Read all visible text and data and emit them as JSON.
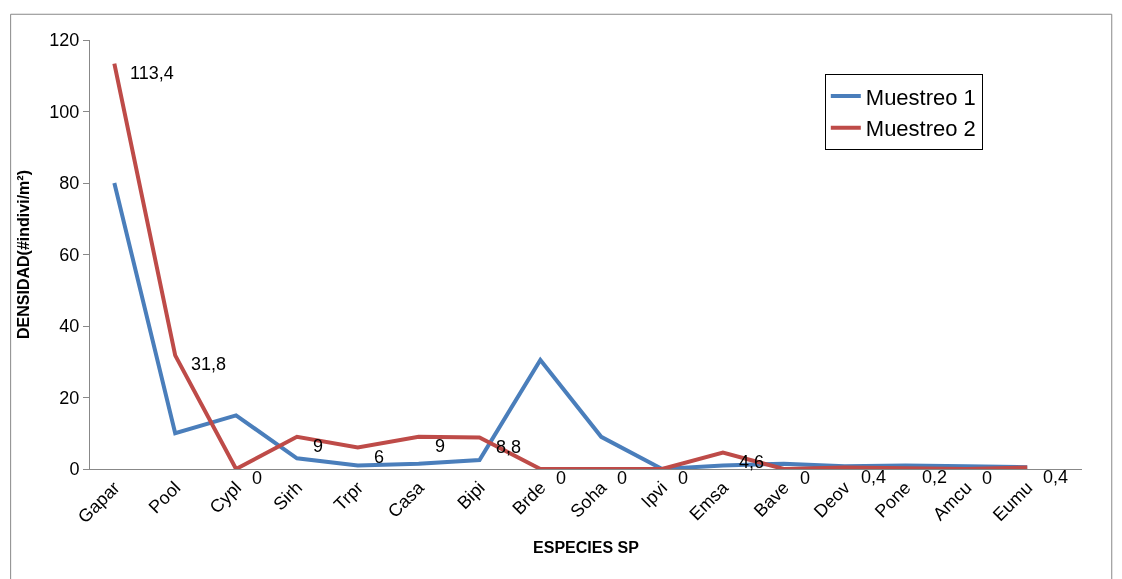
{
  "chart_data": {
    "type": "line",
    "xlabel": "ESPECIES SP",
    "ylabel": "DENSIDAD(#indivi/m²)",
    "categories": [
      "Gapar",
      "Pool",
      "Cypl",
      "Sirh",
      "Trpr",
      "Casa",
      "Bipi",
      "Brde",
      "Soha",
      "Ipvi",
      "Emsa",
      "Bave",
      "Deov",
      "Pone",
      "Amcu",
      "Eumu"
    ],
    "ylim": [
      0,
      120
    ],
    "yticks": [
      0,
      20,
      40,
      60,
      80,
      100,
      120
    ],
    "legend": "top right",
    "marker": "none",
    "series": [
      {
        "name": "Muestreo 1",
        "color": "#4a7ebb",
        "values": [
          80,
          10,
          15,
          3,
          1,
          1.5,
          2.5,
          30.5,
          9,
          0,
          1,
          1.5,
          0.8,
          1,
          0.8,
          0.5
        ]
      },
      {
        "name": "Muestreo 2",
        "color": "#be4b48",
        "values": [
          113.4,
          31.8,
          0,
          9,
          6,
          9,
          8.8,
          0,
          0,
          0,
          4.6,
          0,
          0.4,
          0.2,
          0,
          0.4
        ],
        "value_labels": [
          "113,4",
          "31,8",
          "0",
          "9",
          "6",
          "9",
          "8,8",
          "0",
          "0",
          "0",
          "4,6",
          "0",
          "0,4",
          "0,2",
          "0",
          "0,4"
        ]
      }
    ]
  }
}
